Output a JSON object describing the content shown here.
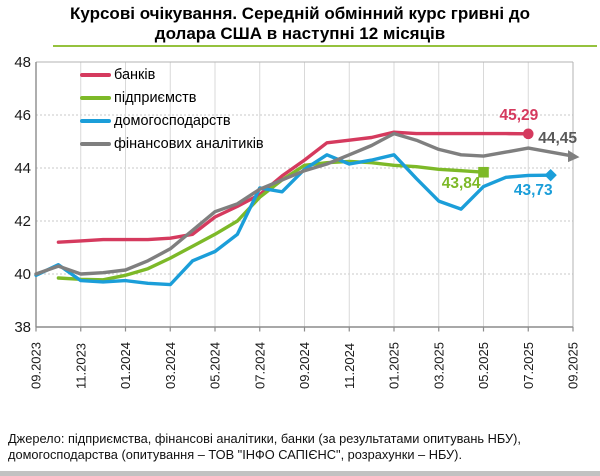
{
  "title": {
    "line1": "Курсові очікування. Середній обмінний курс гривні до",
    "line2": "долара США в наступні 12 місяців"
  },
  "legend": [
    {
      "key": "banks",
      "label": "банків",
      "color": "#d53a5e"
    },
    {
      "key": "enterprises",
      "label": "підприємств",
      "color": "#7db928"
    },
    {
      "key": "households",
      "label": "домогосподарств",
      "color": "#1b9ed9"
    },
    {
      "key": "analysts",
      "label": "фінансових аналітиків",
      "color": "#7f7f7f"
    }
  ],
  "chart_data": {
    "type": "line",
    "title": "Курсові очікування. Середній обмінний курс гривні до долара США в наступні 12 місяців",
    "x_tick_labels": [
      "09.2023",
      "11.2023",
      "01.2024",
      "03.2024",
      "05.2024",
      "07.2024",
      "09.2024",
      "11.2024",
      "01.2025",
      "03.2025",
      "05.2025",
      "07.2025",
      "09.2025"
    ],
    "y_tick_labels": [
      "38",
      "40",
      "42",
      "44",
      "46",
      "48"
    ],
    "ylim": [
      38,
      48
    ],
    "months_total": 24,
    "grid": {
      "vertical": "solid",
      "horizontal": "dotted"
    },
    "legend_position": "top-left-inside",
    "series": [
      {
        "key": "banks",
        "name": "банків",
        "color": "#d53a5e",
        "label_color": "#d53a5e",
        "marker": "circle",
        "start_month_index": 1,
        "end_label": "45,29",
        "values": [
          41.2,
          41.25,
          41.3,
          41.3,
          41.3,
          41.35,
          41.5,
          42.15,
          42.55,
          43.0,
          43.7,
          44.3,
          44.95,
          45.05,
          45.15,
          45.35,
          45.3,
          45.3,
          45.3,
          45.3,
          45.3,
          45.29
        ]
      },
      {
        "key": "enterprises",
        "name": "підприємств",
        "color": "#7db928",
        "label_color": "#7db928",
        "marker": "square",
        "start_month_index": 1,
        "end_label": "43,84",
        "values": [
          39.85,
          39.8,
          39.78,
          39.95,
          40.2,
          40.6,
          41.05,
          41.5,
          42.0,
          42.9,
          43.55,
          44.1,
          44.2,
          44.25,
          44.2,
          44.1,
          44.05,
          43.95,
          43.9,
          43.84
        ]
      },
      {
        "key": "households",
        "name": "домогосподарств",
        "color": "#1b9ed9",
        "label_color": "#1b9ed9",
        "marker": "diamond",
        "start_month_index": 0,
        "end_label": "43,73",
        "values": [
          39.95,
          40.35,
          39.75,
          39.7,
          39.75,
          39.65,
          39.6,
          40.5,
          40.85,
          41.5,
          43.25,
          43.1,
          43.95,
          44.5,
          44.15,
          44.3,
          44.5,
          43.6,
          42.75,
          42.45,
          43.3,
          43.65,
          43.72,
          43.73
        ]
      },
      {
        "key": "analysts",
        "name": "фінансових аналітиків",
        "color": "#7f7f7f",
        "label_color": "#595959",
        "marker": "triangle",
        "start_month_index": 0,
        "end_label": "44,45",
        "values": [
          40.0,
          40.3,
          40.0,
          40.05,
          40.15,
          40.5,
          40.95,
          41.65,
          42.35,
          42.65,
          43.2,
          43.55,
          43.9,
          44.15,
          44.5,
          44.85,
          45.3,
          45.05,
          44.7,
          44.5,
          44.45,
          44.6,
          44.75,
          44.6,
          44.45
        ]
      }
    ]
  },
  "source": {
    "line1": "Джерело: підприємства, фінансові аналітики, банки (за результатами опитувань НБУ),",
    "line2": "домогосподарства (опитування – ТОВ \"ІНФО САПІЄНС\", розрахунки – НБУ)."
  }
}
